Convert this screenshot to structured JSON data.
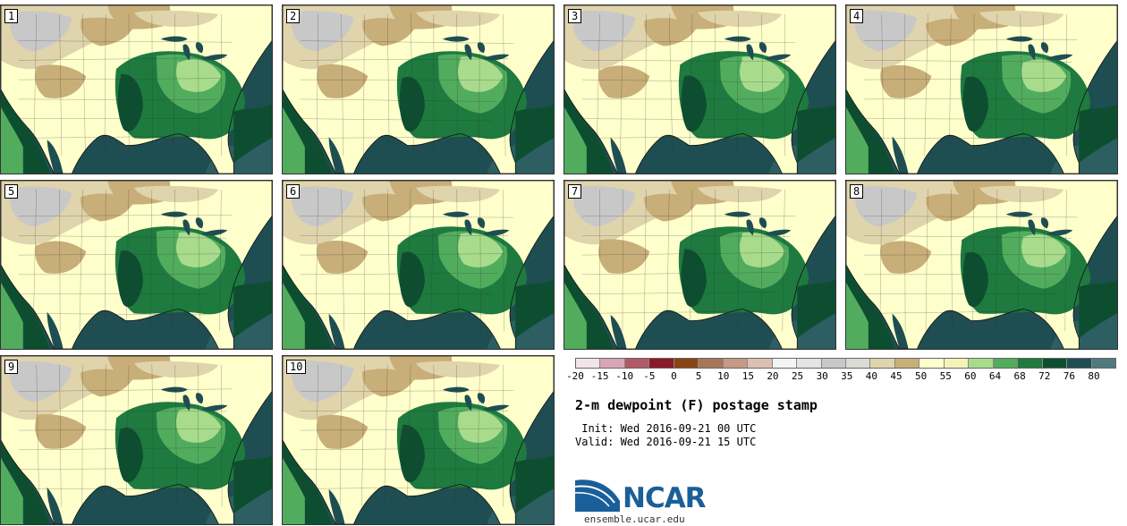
{
  "panels": [
    {
      "label": "1"
    },
    {
      "label": "2"
    },
    {
      "label": "3"
    },
    {
      "label": "4"
    },
    {
      "label": "5"
    },
    {
      "label": "6"
    },
    {
      "label": "7"
    },
    {
      "label": "8"
    },
    {
      "label": "9"
    },
    {
      "label": "10"
    }
  ],
  "colorbar": {
    "tick_labels": [
      "-20",
      "-15",
      "-10",
      "-5",
      "0",
      "5",
      "10",
      "15",
      "20",
      "25",
      "30",
      "35",
      "40",
      "45",
      "50",
      "55",
      "60",
      "64",
      "68",
      "72",
      "76",
      "80"
    ],
    "colors": [
      "#f3e4ec",
      "#d8a6b4",
      "#b05a68",
      "#8b1a28",
      "#8b4513",
      "#a8765a",
      "#c49a86",
      "#dcc0b4",
      "#f4f4f4",
      "#e4e4e4",
      "#c8c8c8",
      "#dcdcd4",
      "#e0d4ac",
      "#c8ae78",
      "#ffffcc",
      "#f4f4b8",
      "#a8dc8c",
      "#52ac5e",
      "#1e7a3e",
      "#0e4e30",
      "#1e4e52",
      "#4e7a7e"
    ]
  },
  "title": "2-m dewpoint (F) postage stamp",
  "init": " Init: Wed 2016-09-21 00 UTC",
  "valid": "Valid: Wed 2016-09-21 15 UTC",
  "logo_text": "NCAR",
  "site": "ensemble.ucar.edu",
  "map_colors": {
    "ocean": "#1e4e52",
    "ocean_shallow": "#2c5e62",
    "very_dry_gray": "#c8c8c8",
    "tan": "#c8ae78",
    "light_tan": "#e0d4ac",
    "cream": "#ffffcc",
    "light_green": "#a8dc8c",
    "medium_green": "#52ac5e",
    "dark_green": "#1e7a3e",
    "deep_green": "#0e4e30"
  }
}
